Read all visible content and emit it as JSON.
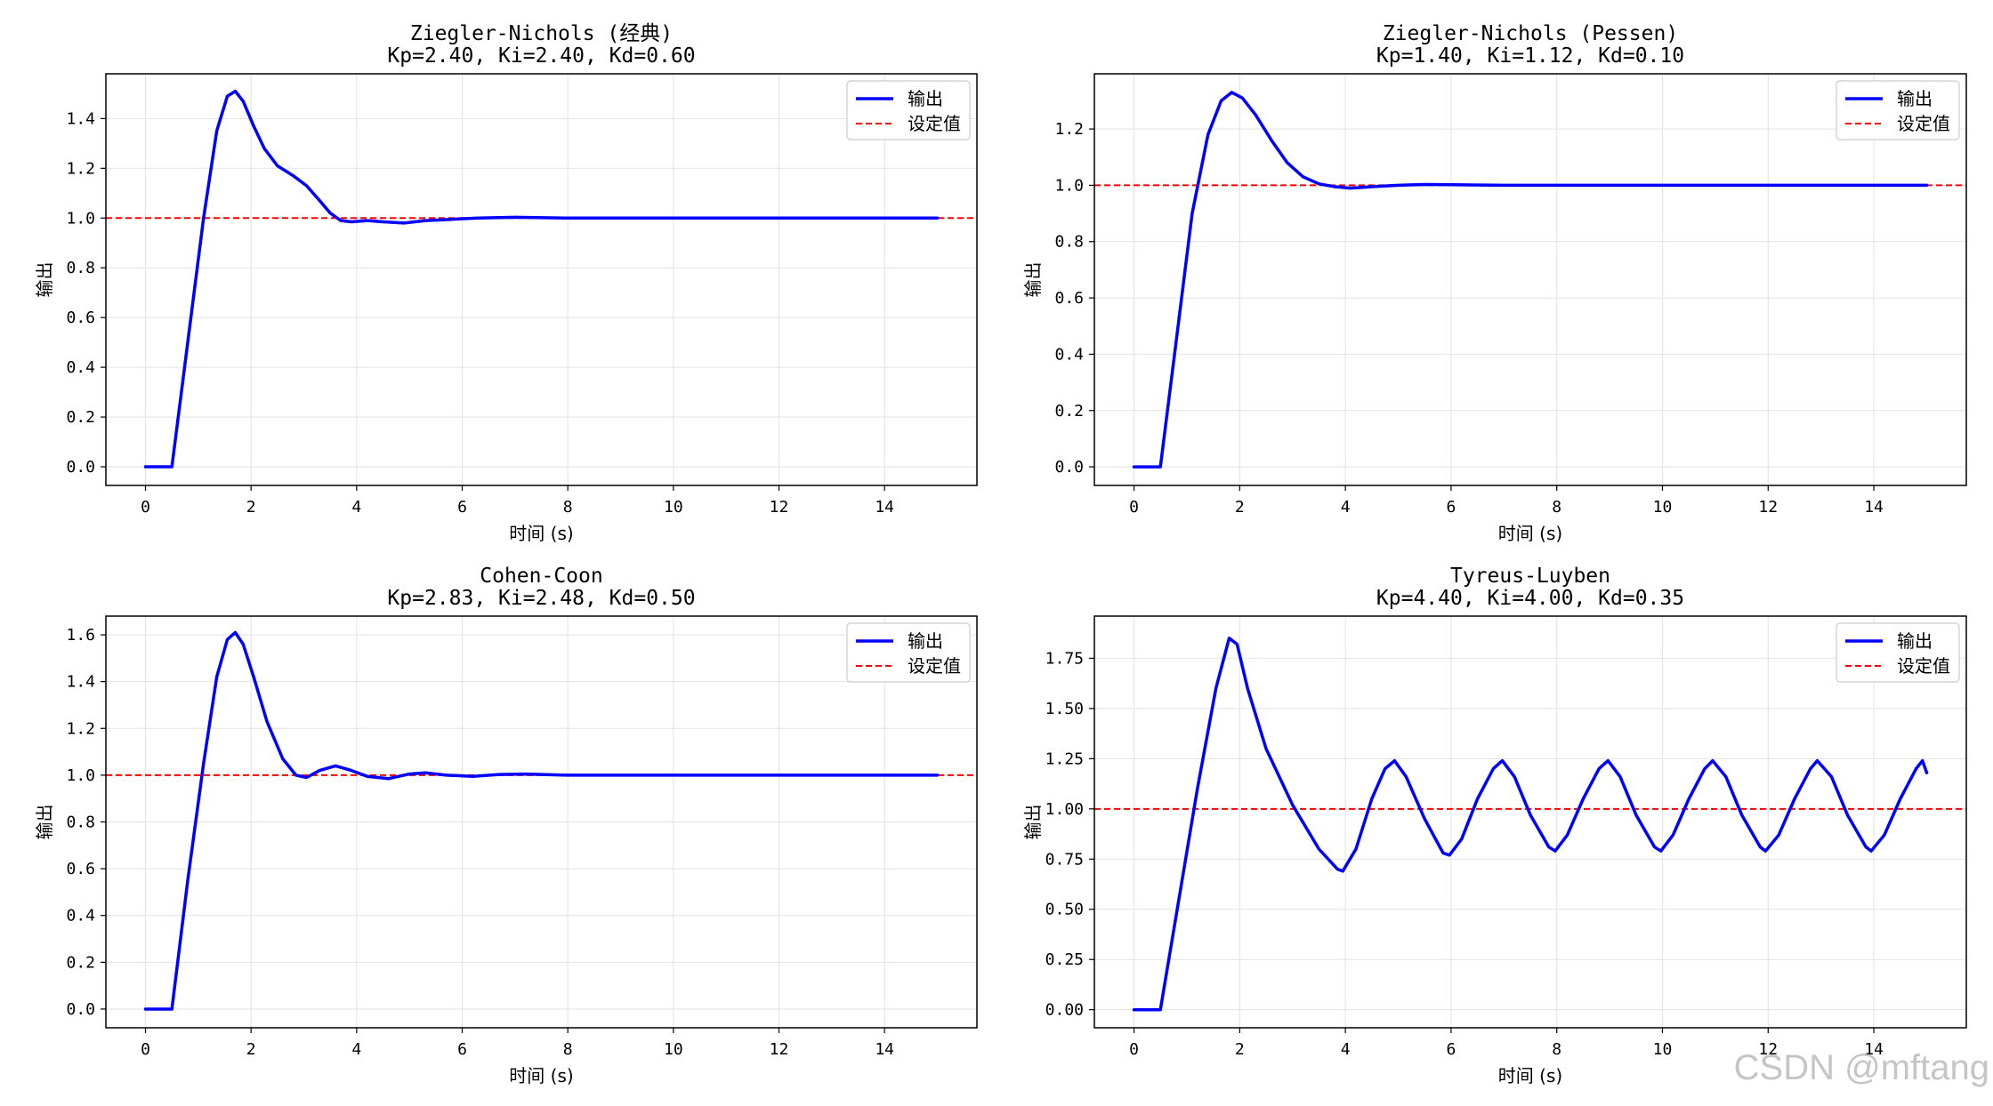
{
  "watermark": "CSDN @mftang",
  "colors": {
    "output": "#0000ff",
    "setpoint": "#ff0000",
    "grid": "#e2e2e2"
  },
  "chart_data": [
    {
      "type": "line",
      "title": "Ziegler-Nichols (经典)",
      "subtitle": "Kp=2.40, Ki=2.40, Kd=0.60",
      "xlabel": "时间 (s)",
      "ylabel": "输出",
      "xlim": [
        -0.75,
        15.75
      ],
      "ylim": [
        -0.075,
        1.58
      ],
      "xticks": [
        0,
        2,
        4,
        6,
        8,
        10,
        12,
        14
      ],
      "xtick_labels": [
        "0",
        "2",
        "4",
        "6",
        "8",
        "10",
        "12",
        "14"
      ],
      "yticks": [
        0,
        0.2,
        0.4,
        0.6,
        0.8,
        1.0,
        1.2,
        1.4
      ],
      "ytick_labels": [
        "0.0",
        "0.2",
        "0.4",
        "0.6",
        "0.8",
        "1.0",
        "1.2",
        "1.4"
      ],
      "grid": true,
      "legend": "top-right",
      "setpoint": 1.0,
      "series": [
        {
          "name": "输出",
          "x": [
            0,
            0.5,
            0.8,
            1.1,
            1.35,
            1.55,
            1.7,
            1.85,
            2.05,
            2.25,
            2.5,
            2.8,
            3.05,
            3.3,
            3.5,
            3.7,
            3.9,
            4.2,
            4.5,
            4.9,
            5.3,
            5.8,
            6.3,
            7.0,
            8.0,
            9.0,
            10.0,
            12.0,
            15.0
          ],
          "y": [
            0,
            0,
            0.5,
            1.0,
            1.35,
            1.49,
            1.51,
            1.47,
            1.37,
            1.28,
            1.21,
            1.17,
            1.13,
            1.07,
            1.02,
            0.99,
            0.985,
            0.99,
            0.985,
            0.98,
            0.99,
            0.995,
            1.0,
            1.003,
            1.0,
            1.0,
            1.0,
            1.0,
            1.0
          ]
        },
        {
          "name": "设定值",
          "style": "dashed",
          "y": 1.0
        }
      ]
    },
    {
      "type": "line",
      "title": "Ziegler-Nichols (Pessen)",
      "subtitle": "Kp=1.40, Ki=1.12, Kd=0.10",
      "xlabel": "时间 (s)",
      "ylabel": "输出",
      "xlim": [
        -0.75,
        15.75
      ],
      "ylim": [
        -0.066,
        1.396
      ],
      "xticks": [
        0,
        2,
        4,
        6,
        8,
        10,
        12,
        14
      ],
      "xtick_labels": [
        "0",
        "2",
        "4",
        "6",
        "8",
        "10",
        "12",
        "14"
      ],
      "yticks": [
        0,
        0.2,
        0.4,
        0.6,
        0.8,
        1.0,
        1.2
      ],
      "ytick_labels": [
        "0.0",
        "0.2",
        "0.4",
        "0.6",
        "0.8",
        "1.0",
        "1.2"
      ],
      "grid": true,
      "legend": "top-right",
      "setpoint": 1.0,
      "series": [
        {
          "name": "输出",
          "x": [
            0,
            0.5,
            0.8,
            1.1,
            1.4,
            1.65,
            1.85,
            2.05,
            2.3,
            2.6,
            2.9,
            3.2,
            3.5,
            3.8,
            4.1,
            4.5,
            5.0,
            5.5,
            6.0,
            7.0,
            8.0,
            10.0,
            15.0
          ],
          "y": [
            0,
            0,
            0.45,
            0.9,
            1.18,
            1.3,
            1.33,
            1.31,
            1.25,
            1.16,
            1.08,
            1.03,
            1.005,
            0.995,
            0.99,
            0.995,
            1.0,
            1.003,
            1.002,
            1.0,
            1.0,
            1.0,
            1.0
          ]
        },
        {
          "name": "设定值",
          "style": "dashed",
          "y": 1.0
        }
      ]
    },
    {
      "type": "line",
      "title": "Cohen-Coon",
      "subtitle": "Kp=2.83, Ki=2.48, Kd=0.50",
      "xlabel": "时间 (s)",
      "ylabel": "输出",
      "xlim": [
        -0.75,
        15.75
      ],
      "ylim": [
        -0.08,
        1.68
      ],
      "xticks": [
        0,
        2,
        4,
        6,
        8,
        10,
        12,
        14
      ],
      "xtick_labels": [
        "0",
        "2",
        "4",
        "6",
        "8",
        "10",
        "12",
        "14"
      ],
      "yticks": [
        0,
        0.2,
        0.4,
        0.6,
        0.8,
        1.0,
        1.2,
        1.4,
        1.6
      ],
      "ytick_labels": [
        "0.0",
        "0.2",
        "0.4",
        "0.6",
        "0.8",
        "1.0",
        "1.2",
        "1.4",
        "1.6"
      ],
      "grid": true,
      "legend": "top-right",
      "setpoint": 1.0,
      "series": [
        {
          "name": "输出",
          "x": [
            0,
            0.5,
            0.8,
            1.1,
            1.35,
            1.55,
            1.7,
            1.85,
            2.05,
            2.3,
            2.6,
            2.85,
            3.05,
            3.3,
            3.6,
            3.9,
            4.2,
            4.6,
            5.0,
            5.3,
            5.7,
            6.2,
            6.7,
            7.2,
            8.0,
            9.0,
            10.0,
            15.0
          ],
          "y": [
            0,
            0,
            0.55,
            1.05,
            1.42,
            1.58,
            1.61,
            1.56,
            1.42,
            1.23,
            1.07,
            1.0,
            0.99,
            1.02,
            1.04,
            1.02,
            0.995,
            0.985,
            1.005,
            1.01,
            1.0,
            0.995,
            1.003,
            1.005,
            1.0,
            1.0,
            1.0,
            1.0
          ]
        },
        {
          "name": "设定值",
          "style": "dashed",
          "y": 1.0
        }
      ]
    },
    {
      "type": "line",
      "title": "Tyreus-Luyben",
      "subtitle": "Kp=4.40, Ki=4.00, Kd=0.35",
      "xlabel": "时间 (s)",
      "ylabel": "输出",
      "xlim": [
        -0.75,
        15.75
      ],
      "ylim": [
        -0.09,
        1.96
      ],
      "xticks": [
        0,
        2,
        4,
        6,
        8,
        10,
        12,
        14
      ],
      "xtick_labels": [
        "0",
        "2",
        "4",
        "6",
        "8",
        "10",
        "12",
        "14"
      ],
      "yticks": [
        0,
        0.25,
        0.5,
        0.75,
        1.0,
        1.25,
        1.5,
        1.75
      ],
      "ytick_labels": [
        "0.00",
        "0.25",
        "0.50",
        "0.75",
        "1.00",
        "1.25",
        "1.50",
        "1.75"
      ],
      "grid": true,
      "legend": "top-right",
      "setpoint": 1.0,
      "series": [
        {
          "name": "输出",
          "x": [
            0,
            0.5,
            0.85,
            1.2,
            1.55,
            1.8,
            1.95,
            2.15,
            2.5,
            3.0,
            3.5,
            3.85,
            3.95,
            4.2,
            4.5,
            4.75,
            4.93,
            5.15,
            5.5,
            5.85,
            5.97,
            6.2,
            6.5,
            6.8,
            6.97,
            7.2,
            7.5,
            7.85,
            7.97,
            8.2,
            8.5,
            8.8,
            8.97,
            9.2,
            9.5,
            9.85,
            9.97,
            10.2,
            10.5,
            10.8,
            10.95,
            11.2,
            11.5,
            11.85,
            11.95,
            12.2,
            12.5,
            12.8,
            12.93,
            13.2,
            13.5,
            13.85,
            13.95,
            14.2,
            14.5,
            14.8,
            14.92,
            15.0
          ],
          "y": [
            0,
            0,
            0.55,
            1.1,
            1.6,
            1.85,
            1.82,
            1.6,
            1.3,
            1.02,
            0.8,
            0.7,
            0.69,
            0.8,
            1.05,
            1.2,
            1.24,
            1.16,
            0.95,
            0.78,
            0.77,
            0.85,
            1.05,
            1.2,
            1.24,
            1.16,
            0.97,
            0.81,
            0.79,
            0.87,
            1.05,
            1.2,
            1.24,
            1.16,
            0.97,
            0.81,
            0.79,
            0.87,
            1.05,
            1.2,
            1.24,
            1.16,
            0.97,
            0.81,
            0.79,
            0.87,
            1.05,
            1.2,
            1.24,
            1.16,
            0.97,
            0.81,
            0.79,
            0.87,
            1.05,
            1.2,
            1.24,
            1.18
          ]
        },
        {
          "name": "设定值",
          "style": "dashed",
          "y": 1.0
        }
      ]
    }
  ]
}
